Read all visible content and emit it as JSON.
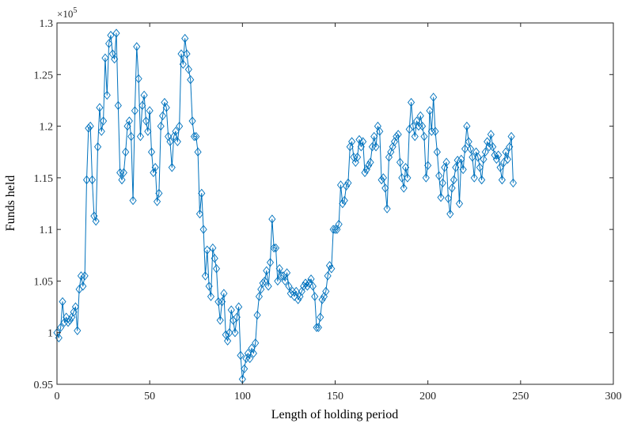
{
  "chart_data": {
    "type": "line",
    "title": "",
    "xlabel": "Length of holding period",
    "ylabel": "Funds held",
    "y_exponent_label": {
      "prefix": "×",
      "base": "10",
      "power": "5"
    },
    "xlim": [
      0,
      300
    ],
    "ylim": [
      0.95,
      1.3
    ],
    "y_scale_factor": 100000,
    "xticks": [
      0,
      50,
      100,
      150,
      200,
      250,
      300
    ],
    "xtick_labels": [
      "0",
      "50",
      "100",
      "150",
      "200",
      "250",
      "300"
    ],
    "yticks": [
      0.95,
      1.0,
      1.05,
      1.1,
      1.15,
      1.2,
      1.25,
      1.3
    ],
    "ytick_labels": [
      "0.95",
      "1",
      "1.05",
      "1.1",
      "1.15",
      "1.2",
      "1.25",
      "1.3"
    ],
    "grid": false,
    "marker": "diamond",
    "colors": {
      "line": "#0072BD",
      "axes": "#262626",
      "background": "#ffffff"
    },
    "series": [
      {
        "values": [
          1.0,
          0.995,
          1.005,
          1.03,
          1.01,
          1.015,
          1.01,
          1.012,
          1.015,
          1.02,
          1.025,
          1.002,
          1.042,
          1.055,
          1.045,
          1.055,
          1.148,
          1.198,
          1.2,
          1.148,
          1.113,
          1.108,
          1.18,
          1.218,
          1.195,
          1.205,
          1.266,
          1.23,
          1.28,
          1.288,
          1.27,
          1.265,
          1.29,
          1.22,
          1.155,
          1.148,
          1.155,
          1.175,
          1.2,
          1.205,
          1.19,
          1.128,
          1.215,
          1.277,
          1.246,
          1.19,
          1.22,
          1.23,
          1.205,
          1.195,
          1.215,
          1.175,
          1.155,
          1.16,
          1.127,
          1.135,
          1.2,
          1.21,
          1.223,
          1.218,
          1.19,
          1.185,
          1.16,
          1.19,
          1.195,
          1.185,
          1.2,
          1.27,
          1.26,
          1.285,
          1.27,
          1.255,
          1.245,
          1.205,
          1.19,
          1.19,
          1.175,
          1.115,
          1.135,
          1.1,
          1.055,
          1.08,
          1.045,
          1.035,
          1.082,
          1.072,
          1.062,
          1.03,
          1.012,
          1.03,
          1.038,
          0.998,
          0.992,
          1.0,
          1.022,
          1.012,
          1.0,
          1.015,
          1.025,
          0.978,
          0.955,
          0.965,
          0.975,
          0.98,
          0.975,
          0.985,
          0.98,
          0.99,
          1.017,
          1.035,
          1.042,
          1.048,
          1.05,
          1.06,
          1.045,
          1.068,
          1.11,
          1.082,
          1.082,
          1.05,
          1.062,
          1.055,
          1.055,
          1.05,
          1.058,
          1.045,
          1.038,
          1.04,
          1.035,
          1.04,
          1.032,
          1.035,
          1.04,
          1.045,
          1.048,
          1.045,
          1.048,
          1.052,
          1.045,
          1.035,
          1.005,
          1.005,
          1.015,
          1.032,
          1.035,
          1.04,
          1.055,
          1.065,
          1.062,
          1.1,
          1.1,
          1.1,
          1.105,
          1.143,
          1.125,
          1.128,
          1.142,
          1.145,
          1.18,
          1.185,
          1.17,
          1.165,
          1.17,
          1.187,
          1.18,
          1.185,
          1.155,
          1.158,
          1.162,
          1.165,
          1.18,
          1.19,
          1.18,
          1.2,
          1.195,
          1.148,
          1.15,
          1.14,
          1.12,
          1.17,
          1.175,
          1.18,
          1.185,
          1.19,
          1.192,
          1.165,
          1.15,
          1.14,
          1.16,
          1.15,
          1.197,
          1.223,
          1.2,
          1.19,
          1.205,
          1.2,
          1.21,
          1.2,
          1.19,
          1.15,
          1.162,
          1.215,
          1.195,
          1.228,
          1.195,
          1.175,
          1.152,
          1.131,
          1.145,
          1.16,
          1.165,
          1.13,
          1.115,
          1.14,
          1.148,
          1.16,
          1.167,
          1.125,
          1.168,
          1.158,
          1.178,
          1.2,
          1.185,
          1.178,
          1.17,
          1.15,
          1.175,
          1.17,
          1.16,
          1.148,
          1.168,
          1.175,
          1.185,
          1.18,
          1.192,
          1.18,
          1.172,
          1.168,
          1.172,
          1.16,
          1.148,
          1.165,
          1.175,
          1.168,
          1.18,
          1.19,
          1.145
        ]
      }
    ]
  }
}
